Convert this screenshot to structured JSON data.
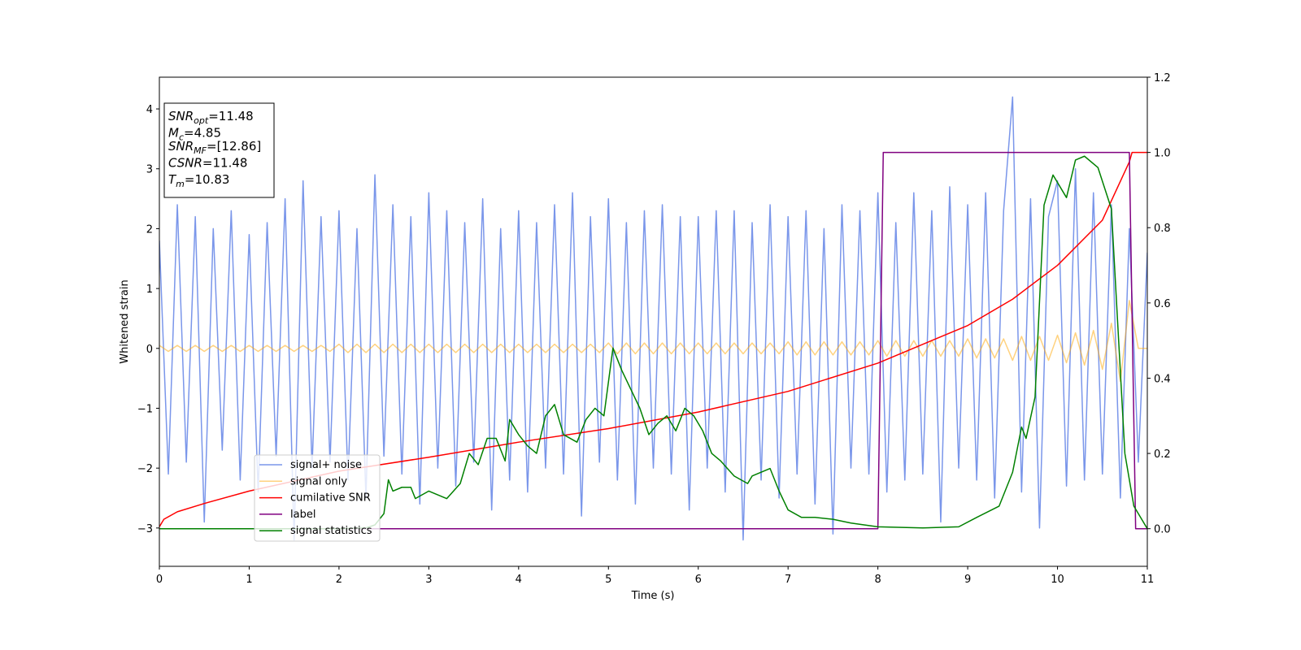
{
  "chart_data": {
    "type": "line",
    "xlabel": "Time (s)",
    "ylabel": "Whitened strain",
    "xlim": [
      0,
      11
    ],
    "xticks": [
      0,
      1,
      2,
      3,
      4,
      5,
      6,
      7,
      8,
      9,
      10,
      11
    ],
    "ylim": [
      -3.64,
      4.53
    ],
    "yticks": [
      -3,
      -2,
      -1,
      0,
      1,
      2,
      3,
      4
    ],
    "y2lim": [
      -0.1,
      1.2
    ],
    "y2ticks": [
      0.0,
      0.2,
      0.4,
      0.6,
      0.8,
      1.0,
      1.2
    ],
    "legend": "lower left",
    "annotations": [
      {
        "text": "SNR",
        "sub": "opt",
        "rest": "=11.48"
      },
      {
        "text": "M",
        "sub": "c",
        "rest": "=4.85"
      },
      {
        "text": "SNR",
        "sub": "MF",
        "rest": "=[12.86]"
      },
      {
        "text": "CSNR",
        "rest": "=11.48"
      },
      {
        "text": "T",
        "sub": "m",
        "rest": "=10.83"
      }
    ],
    "x": [
      0,
      0.1,
      0.2,
      0.3,
      0.4,
      0.5,
      0.6,
      0.7,
      0.8,
      0.9,
      1,
      1.1,
      1.2,
      1.3,
      1.4,
      1.5,
      1.6,
      1.7,
      1.8,
      1.9,
      2,
      2.1,
      2.2,
      2.3,
      2.4,
      2.5,
      2.6,
      2.7,
      2.8,
      2.9,
      3,
      3.1,
      3.2,
      3.3,
      3.4,
      3.5,
      3.6,
      3.7,
      3.8,
      3.9,
      4,
      4.1,
      4.2,
      4.3,
      4.4,
      4.5,
      4.6,
      4.7,
      4.8,
      4.9,
      5,
      5.1,
      5.2,
      5.3,
      5.4,
      5.5,
      5.6,
      5.7,
      5.8,
      5.9,
      6,
      6.1,
      6.2,
      6.3,
      6.4,
      6.5,
      6.6,
      6.7,
      6.8,
      6.9,
      7,
      7.1,
      7.2,
      7.3,
      7.4,
      7.5,
      7.6,
      7.7,
      7.8,
      7.9,
      8,
      8.1,
      8.2,
      8.3,
      8.4,
      8.5,
      8.6,
      8.7,
      8.8,
      8.9,
      9,
      9.1,
      9.2,
      9.3,
      9.4,
      9.5,
      9.6,
      9.7,
      9.8,
      9.9,
      10,
      10.1,
      10.2,
      10.3,
      10.4,
      10.5,
      10.6,
      10.7,
      10.8,
      10.9,
      11
    ],
    "series": [
      {
        "name": "signal+ noise",
        "color": "#4169e1",
        "alpha": 0.7,
        "values": [
          1.8,
          -2.1,
          2.4,
          -1.9,
          2.2,
          -2.9,
          2.0,
          -1.7,
          2.3,
          -2.2,
          1.9,
          -2.4,
          2.1,
          -1.8,
          2.5,
          -3.2,
          2.8,
          -2.0,
          2.2,
          -1.9,
          2.3,
          -2.2,
          2.0,
          -2.5,
          2.9,
          -1.8,
          2.4,
          -2.1,
          2.2,
          -2.6,
          2.6,
          -2.0,
          2.3,
          -2.3,
          2.1,
          -1.9,
          2.5,
          -2.7,
          2.0,
          -2.2,
          2.3,
          -2.4,
          2.1,
          -2.0,
          2.4,
          -2.1,
          2.6,
          -2.8,
          2.2,
          -1.9,
          2.5,
          -2.2,
          2.1,
          -2.6,
          2.3,
          -2.0,
          2.4,
          -2.1,
          2.2,
          -2.7,
          2.2,
          -2.0,
          2.3,
          -2.4,
          2.3,
          -3.2,
          2.1,
          -2.2,
          2.4,
          -2.5,
          2.2,
          -2.1,
          2.3,
          -2.6,
          2.0,
          -3.1,
          2.4,
          -2.0,
          2.3,
          -2.1,
          2.6,
          -2.4,
          2.1,
          -2.2,
          2.6,
          -2.1,
          2.3,
          -2.9,
          2.7,
          -2.0,
          2.4,
          -2.2,
          2.6,
          -2.5,
          2.3,
          4.2,
          -2.4,
          2.5,
          -3.0,
          2.2,
          2.8,
          -2.3,
          3.0,
          -2.2,
          2.6,
          -2.1,
          2.4,
          -2.5,
          2.0,
          -1.9,
          1.6
        ]
      },
      {
        "name": "signal only",
        "color": "#ffa500",
        "alpha": 0.5,
        "values": [
          0.05,
          -0.05,
          0.05,
          -0.05,
          0.05,
          -0.05,
          0.05,
          -0.05,
          0.05,
          -0.05,
          0.05,
          -0.05,
          0.05,
          -0.05,
          0.05,
          -0.05,
          0.05,
          -0.05,
          0.05,
          -0.05,
          0.07,
          -0.07,
          0.07,
          -0.07,
          0.07,
          -0.07,
          0.07,
          -0.07,
          0.07,
          -0.07,
          0.07,
          -0.07,
          0.07,
          -0.07,
          0.07,
          -0.07,
          0.07,
          -0.07,
          0.07,
          -0.07,
          0.07,
          -0.07,
          0.07,
          -0.07,
          0.07,
          -0.07,
          0.07,
          -0.07,
          0.07,
          -0.07,
          0.09,
          -0.09,
          0.09,
          -0.09,
          0.09,
          -0.09,
          0.09,
          -0.09,
          0.09,
          -0.09,
          0.09,
          -0.09,
          0.09,
          -0.09,
          0.09,
          -0.09,
          0.09,
          -0.09,
          0.09,
          -0.09,
          0.11,
          -0.11,
          0.11,
          -0.11,
          0.11,
          -0.11,
          0.11,
          -0.11,
          0.11,
          -0.11,
          0.13,
          -0.13,
          0.13,
          -0.13,
          0.13,
          -0.13,
          0.13,
          -0.13,
          0.13,
          -0.13,
          0.16,
          -0.16,
          0.16,
          -0.16,
          0.16,
          -0.2,
          0.2,
          -0.2,
          0.2,
          -0.2,
          0.22,
          -0.24,
          0.26,
          -0.28,
          0.3,
          -0.35,
          0.42,
          -0.55,
          0.8,
          0,
          0
        ]
      },
      {
        "name": "cumilative SNR",
        "color": "#ff0000",
        "alpha": 1,
        "axis": "y2",
        "x": [
          0,
          0.05,
          0.2,
          0.5,
          1,
          2,
          3,
          4,
          5,
          6,
          7,
          8,
          9,
          9.5,
          10,
          10.5,
          10.8,
          10.83,
          11
        ],
        "values": [
          0.005,
          0.025,
          0.045,
          0.067,
          0.1,
          0.153,
          0.19,
          0.23,
          0.266,
          0.31,
          0.365,
          0.44,
          0.54,
          0.61,
          0.7,
          0.82,
          0.975,
          1.0,
          1.0
        ]
      },
      {
        "name": "label",
        "color": "#800080",
        "alpha": 1,
        "axis": "y2",
        "x": [
          0,
          8.0,
          8.06,
          10.8,
          10.87,
          11
        ],
        "values": [
          0,
          0,
          1,
          1,
          0,
          0
        ]
      },
      {
        "name": "signal statistics",
        "color": "#008000",
        "alpha": 1,
        "axis": "y2",
        "x": [
          0,
          1,
          2,
          2.3,
          2.4,
          2.5,
          2.55,
          2.6,
          2.7,
          2.8,
          2.85,
          3.0,
          3.2,
          3.35,
          3.45,
          3.55,
          3.65,
          3.75,
          3.85,
          3.9,
          4.0,
          4.1,
          4.2,
          4.3,
          4.4,
          4.5,
          4.65,
          4.75,
          4.85,
          4.95,
          5.05,
          5.15,
          5.25,
          5.35,
          5.45,
          5.55,
          5.65,
          5.75,
          5.85,
          5.95,
          6.05,
          6.15,
          6.25,
          6.4,
          6.55,
          6.6,
          6.8,
          6.9,
          7.0,
          7.15,
          7.3,
          7.5,
          7.7,
          8.0,
          8.5,
          8.9,
          9.1,
          9.35,
          9.5,
          9.6,
          9.65,
          9.75,
          9.85,
          9.95,
          10.1,
          10.2,
          10.3,
          10.45,
          10.6,
          10.75,
          10.85,
          11
        ],
        "values": [
          0,
          0,
          0,
          0.002,
          0.01,
          0.04,
          0.13,
          0.1,
          0.11,
          0.11,
          0.08,
          0.1,
          0.08,
          0.12,
          0.2,
          0.17,
          0.24,
          0.24,
          0.18,
          0.29,
          0.25,
          0.22,
          0.2,
          0.3,
          0.33,
          0.25,
          0.23,
          0.29,
          0.32,
          0.3,
          0.48,
          0.42,
          0.37,
          0.32,
          0.25,
          0.28,
          0.3,
          0.26,
          0.32,
          0.3,
          0.26,
          0.2,
          0.18,
          0.14,
          0.12,
          0.14,
          0.16,
          0.1,
          0.05,
          0.03,
          0.03,
          0.025,
          0.015,
          0.005,
          0.002,
          0.005,
          0.03,
          0.06,
          0.15,
          0.27,
          0.24,
          0.35,
          0.86,
          0.94,
          0.88,
          0.98,
          0.99,
          0.96,
          0.85,
          0.2,
          0.06,
          0
        ]
      }
    ]
  }
}
